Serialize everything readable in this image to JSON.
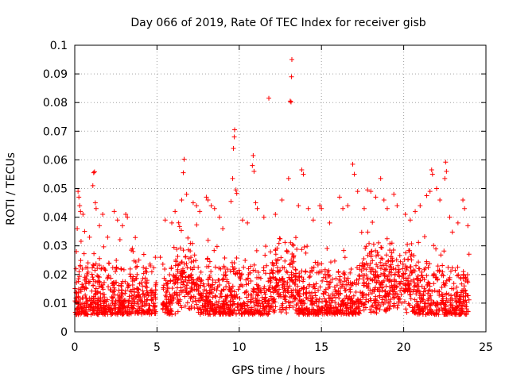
{
  "chart_data": {
    "type": "scatter",
    "title": "Day 066 of 2019, Rate Of TEC Index for receiver gisb",
    "xlabel": "GPS time / hours",
    "ylabel": "ROTI / TECUs",
    "xlim": [
      0,
      25
    ],
    "ylim": [
      0,
      0.1
    ],
    "xticks": [
      0,
      5,
      10,
      15,
      20,
      25
    ],
    "xtick_labels": [
      "0",
      "5",
      "10",
      "15",
      "20",
      "25"
    ],
    "yticks": [
      0,
      0.01,
      0.02,
      0.03,
      0.04,
      0.05,
      0.06,
      0.07,
      0.08,
      0.09,
      0.1
    ],
    "ytick_labels": [
      "0",
      "0.01",
      "0.02",
      "0.03",
      "0.04",
      "0.05",
      "0.06",
      "0.07",
      "0.08",
      "0.09",
      "0.1"
    ],
    "grid": true,
    "marker": "plus",
    "color": "#ff0000",
    "data_coverage_hours": [
      0,
      24
    ],
    "series": [
      {
        "name": "ROTI gisb",
        "points": [
          [
            0.1,
            0.028
          ],
          [
            0.15,
            0.036
          ],
          [
            0.2,
            0.049
          ],
          [
            0.25,
            0.047
          ],
          [
            0.3,
            0.044
          ],
          [
            0.35,
            0.042
          ],
          [
            0.5,
            0.041
          ],
          [
            0.6,
            0.035
          ],
          [
            0.9,
            0.033
          ],
          [
            1.1,
            0.051
          ],
          [
            1.15,
            0.0555
          ],
          [
            1.2,
            0.0558
          ],
          [
            1.25,
            0.045
          ],
          [
            1.3,
            0.043
          ],
          [
            1.5,
            0.037
          ],
          [
            1.7,
            0.041
          ],
          [
            2.0,
            0.033
          ],
          [
            2.4,
            0.042
          ],
          [
            2.6,
            0.039
          ],
          [
            2.9,
            0.037
          ],
          [
            3.1,
            0.041
          ],
          [
            3.2,
            0.04
          ],
          [
            3.5,
            0.029
          ],
          [
            3.9,
            0.025
          ],
          [
            4.2,
            0.027
          ],
          [
            4.6,
            0.023
          ],
          [
            4.9,
            0.026
          ],
          [
            5.2,
            0.026
          ],
          [
            5.5,
            0.039
          ],
          [
            5.9,
            0.038
          ],
          [
            6.1,
            0.042
          ],
          [
            6.5,
            0.046
          ],
          [
            6.6,
            0.0555
          ],
          [
            6.65,
            0.0602
          ],
          [
            6.8,
            0.048
          ],
          [
            7.2,
            0.045
          ],
          [
            7.4,
            0.044
          ],
          [
            7.6,
            0.042
          ],
          [
            8.0,
            0.047
          ],
          [
            8.1,
            0.046
          ],
          [
            8.3,
            0.044
          ],
          [
            8.5,
            0.043
          ],
          [
            8.8,
            0.04
          ],
          [
            9.0,
            0.036
          ],
          [
            9.5,
            0.0455
          ],
          [
            9.6,
            0.0535
          ],
          [
            9.65,
            0.064
          ],
          [
            9.7,
            0.068
          ],
          [
            9.72,
            0.0705
          ],
          [
            9.8,
            0.0495
          ],
          [
            9.85,
            0.0483
          ],
          [
            10.2,
            0.039
          ],
          [
            10.5,
            0.038
          ],
          [
            10.8,
            0.058
          ],
          [
            10.85,
            0.0615
          ],
          [
            10.9,
            0.056
          ],
          [
            11.0,
            0.045
          ],
          [
            11.1,
            0.043
          ],
          [
            11.5,
            0.04
          ],
          [
            11.8,
            0.0815
          ],
          [
            12.2,
            0.041
          ],
          [
            12.6,
            0.046
          ],
          [
            13.0,
            0.0535
          ],
          [
            13.1,
            0.0805
          ],
          [
            13.15,
            0.0802
          ],
          [
            13.18,
            0.089
          ],
          [
            13.2,
            0.095
          ],
          [
            13.6,
            0.044
          ],
          [
            13.8,
            0.0565
          ],
          [
            13.9,
            0.055
          ],
          [
            14.2,
            0.043
          ],
          [
            14.5,
            0.039
          ],
          [
            14.9,
            0.044
          ],
          [
            15.0,
            0.043
          ],
          [
            15.5,
            0.038
          ],
          [
            16.1,
            0.047
          ],
          [
            16.3,
            0.043
          ],
          [
            16.6,
            0.044
          ],
          [
            16.9,
            0.0585
          ],
          [
            17.0,
            0.055
          ],
          [
            17.2,
            0.049
          ],
          [
            17.6,
            0.043
          ],
          [
            17.8,
            0.0495
          ],
          [
            18.0,
            0.049
          ],
          [
            18.3,
            0.047
          ],
          [
            18.6,
            0.0535
          ],
          [
            18.8,
            0.046
          ],
          [
            19.0,
            0.043
          ],
          [
            19.4,
            0.048
          ],
          [
            19.6,
            0.044
          ],
          [
            20.1,
            0.041
          ],
          [
            20.4,
            0.039
          ],
          [
            20.7,
            0.042
          ],
          [
            21.0,
            0.044
          ],
          [
            21.4,
            0.0475
          ],
          [
            21.6,
            0.049
          ],
          [
            21.7,
            0.0565
          ],
          [
            21.75,
            0.055
          ],
          [
            22.0,
            0.05
          ],
          [
            22.2,
            0.046
          ],
          [
            22.5,
            0.0535
          ],
          [
            22.55,
            0.0592
          ],
          [
            22.6,
            0.056
          ],
          [
            22.8,
            0.04
          ],
          [
            23.3,
            0.038
          ],
          [
            23.6,
            0.046
          ],
          [
            23.7,
            0.043
          ],
          [
            23.9,
            0.037
          ]
        ]
      }
    ]
  }
}
